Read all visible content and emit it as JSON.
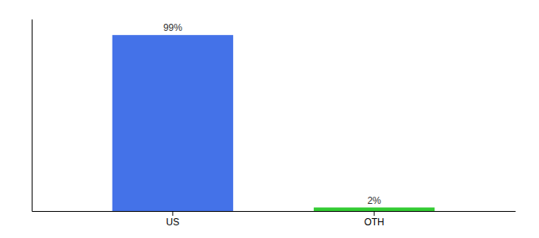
{
  "chart_data": {
    "type": "bar",
    "categories": [
      "US",
      "OTH"
    ],
    "values": [
      99,
      2
    ],
    "value_labels": [
      "99%",
      "2%"
    ],
    "colors": [
      "#4472e8",
      "#33cc33"
    ],
    "ylim": [
      0,
      108
    ],
    "data_labels": true,
    "tick_labels": "x"
  }
}
